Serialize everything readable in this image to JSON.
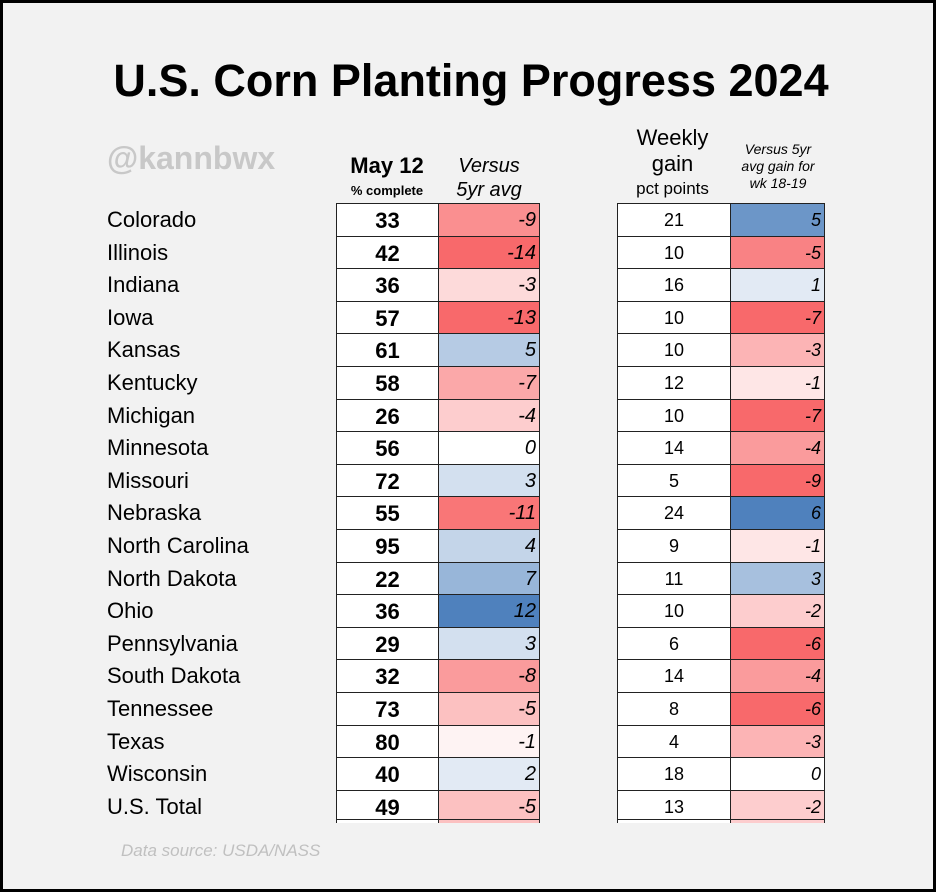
{
  "title": "U.S. Corn Planting Progress 2024",
  "watermark": "@kannbwx",
  "source": "Data source: USDA/NASS",
  "colors": {
    "positive": "#4f81bd",
    "negative": "#f8696b",
    "neutral": "#ffffff"
  },
  "chart_data": {
    "type": "table",
    "title": "U.S. Corn Planting Progress 2024",
    "columns": [
      {
        "line1": "May 12",
        "line2": "% complete"
      },
      {
        "line1": "Versus",
        "line2": "5yr avg"
      },
      {
        "line1": "Weekly",
        "line2": "gain",
        "line3": "pct points"
      },
      {
        "line1": "Versus 5yr",
        "line2": "avg gain for",
        "line3": "wk 18-19"
      }
    ],
    "rows": [
      {
        "state": "Colorado",
        "pct": "33",
        "vs": "-9",
        "gain": "21",
        "vsgain": "5"
      },
      {
        "state": "Illinois",
        "pct": "42",
        "vs": "-14",
        "gain": "10",
        "vsgain": "-5"
      },
      {
        "state": "Indiana",
        "pct": "36",
        "vs": "-3",
        "gain": "16",
        "vsgain": "1"
      },
      {
        "state": "Iowa",
        "pct": "57",
        "vs": "-13",
        "gain": "10",
        "vsgain": "-7"
      },
      {
        "state": "Kansas",
        "pct": "61",
        "vs": "5",
        "gain": "10",
        "vsgain": "-3"
      },
      {
        "state": "Kentucky",
        "pct": "58",
        "vs": "-7",
        "gain": "12",
        "vsgain": "-1"
      },
      {
        "state": "Michigan",
        "pct": "26",
        "vs": "-4",
        "gain": "10",
        "vsgain": "-7"
      },
      {
        "state": "Minnesota",
        "pct": "56",
        "vs": "0",
        "gain": "14",
        "vsgain": "-4"
      },
      {
        "state": "Missouri",
        "pct": "72",
        "vs": "3",
        "gain": "5",
        "vsgain": "-9"
      },
      {
        "state": "Nebraska",
        "pct": "55",
        "vs": "-11",
        "gain": "24",
        "vsgain": "6"
      },
      {
        "state": "North Carolina",
        "pct": "95",
        "vs": "4",
        "gain": "9",
        "vsgain": "-1"
      },
      {
        "state": "North Dakota",
        "pct": "22",
        "vs": "7",
        "gain": "11",
        "vsgain": "3"
      },
      {
        "state": "Ohio",
        "pct": "36",
        "vs": "12",
        "gain": "10",
        "vsgain": "-2"
      },
      {
        "state": "Pennsylvania",
        "pct": "29",
        "vs": "3",
        "gain": "6",
        "vsgain": "-6"
      },
      {
        "state": "South Dakota",
        "pct": "32",
        "vs": "-8",
        "gain": "14",
        "vsgain": "-4"
      },
      {
        "state": "Tennessee",
        "pct": "73",
        "vs": "-5",
        "gain": "8",
        "vsgain": "-6"
      },
      {
        "state": "Texas",
        "pct": "80",
        "vs": "-1",
        "gain": "4",
        "vsgain": "-3"
      },
      {
        "state": "Wisconsin",
        "pct": "40",
        "vs": "2",
        "gain": "18",
        "vsgain": "0"
      },
      {
        "state": "U.S. Total",
        "pct": "49",
        "vs": "-5",
        "gain": "13",
        "vsgain": "-2"
      }
    ]
  }
}
